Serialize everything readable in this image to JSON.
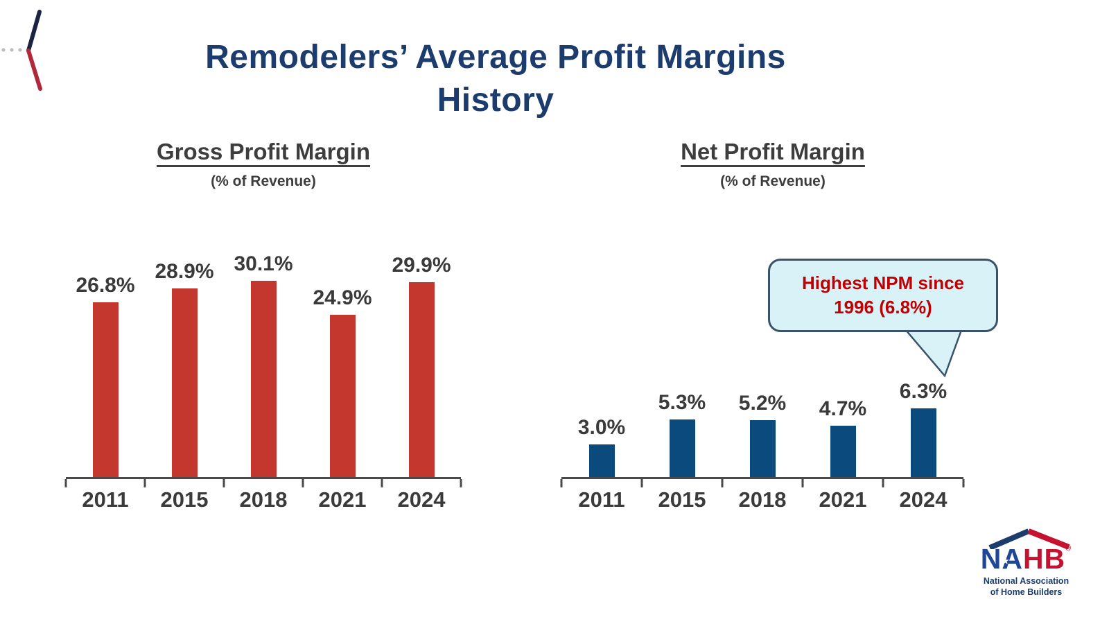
{
  "slide": {
    "title": "Remodelers’ Average Profit Margins History",
    "title_color": "#1B3C6D",
    "background": "#FFFFFF"
  },
  "chart_data": [
    {
      "type": "bar",
      "title": "Gross Profit Margin",
      "subtitle": "(% of Revenue)",
      "categories": [
        "2011",
        "2015",
        "2018",
        "2021",
        "2024"
      ],
      "values": [
        26.8,
        28.9,
        30.1,
        24.9,
        29.9
      ],
      "labels": [
        "26.8%",
        "28.9%",
        "30.1%",
        "24.9%",
        "29.9%"
      ],
      "bar_color": "#C4372E",
      "ylim": [
        0,
        32
      ],
      "grid": false,
      "legend": "none",
      "value_label_position": "above-bar"
    },
    {
      "type": "bar",
      "title": "Net Profit Margin",
      "subtitle": "(% of Revenue)",
      "categories": [
        "2011",
        "2015",
        "2018",
        "2021",
        "2024"
      ],
      "values": [
        3.0,
        5.3,
        5.2,
        4.7,
        6.3
      ],
      "labels": [
        "3.0%",
        "5.3%",
        "5.2%",
        "4.7%",
        "6.3%"
      ],
      "bar_color": "#0B4A7D",
      "ylim": [
        0,
        7
      ],
      "grid": false,
      "legend": "none",
      "value_label_position": "above-bar",
      "annotation": {
        "text": "Highest NPM since 1996 (6.8%)",
        "target_category": "2024"
      }
    }
  ],
  "callout": {
    "line1": "Highest NPM since",
    "line2": "1996 (6.8%)",
    "fill": "#D8F2F8",
    "border": "#3A536B",
    "text_color": "#C00000"
  },
  "logo": {
    "acronym_blue": "NA",
    "acronym_red": "HB",
    "registered_mark": "®",
    "star_glyph": "★",
    "line1": "National Association",
    "line2": "of Home Builders",
    "blue": "#1F4796",
    "red": "#C41230"
  }
}
